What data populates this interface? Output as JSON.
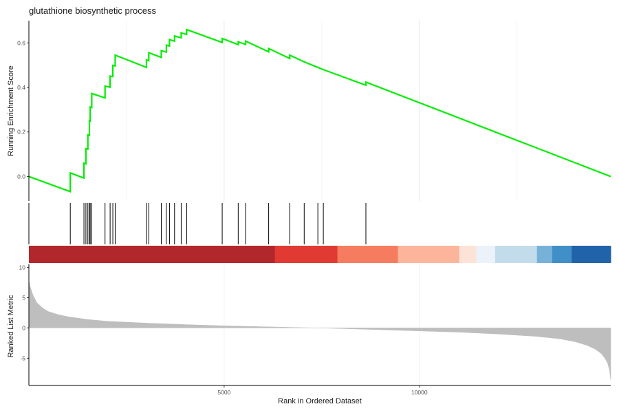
{
  "chart_data": {
    "type": "line",
    "title": "glutathione biosynthetic process",
    "xlabel": "Rank in Ordered Dataset",
    "xlim": [
      0,
      14900
    ],
    "x_ticks": [
      5000,
      10000
    ],
    "x_tick_labels": [
      "5000",
      "10000"
    ],
    "panels": {
      "enrichment": {
        "ylabel": "Running Enrichment Score",
        "ylim": [
          -0.11,
          0.7
        ],
        "y_ticks": [
          0.0,
          0.2,
          0.4,
          0.6
        ],
        "y_tick_labels": [
          "0.0",
          "0.2",
          "0.4",
          "0.6"
        ],
        "line_color": "#00ee00",
        "series": [
          {
            "x": [
              0,
              1060,
              1060,
              1410,
              1410,
              1460,
              1460,
              1510,
              1510,
              1550,
              1550,
              1570,
              1570,
              1610,
              1610,
              1950,
              1950,
              2080,
              2080,
              2150,
              2150,
              2210,
              2210,
              3010,
              3010,
              3070,
              3070,
              3390,
              3390,
              3520,
              3520,
              3600,
              3600,
              3730,
              3730,
              3900,
              3900,
              4040,
              4040,
              4950,
              4950,
              5360,
              5360,
              5550,
              5550,
              6140,
              6140,
              6680,
              6680,
              7050,
              7050,
              7400,
              7400,
              7540,
              7540,
              8630,
              8630,
              14900
            ],
            "y": [
              0.0,
              -0.068,
              0.016,
              -0.007,
              0.06,
              0.057,
              0.125,
              0.123,
              0.187,
              0.185,
              0.25,
              0.249,
              0.312,
              0.31,
              0.373,
              0.353,
              0.406,
              0.401,
              0.451,
              0.449,
              0.499,
              0.497,
              0.545,
              0.49,
              0.524,
              0.52,
              0.556,
              0.535,
              0.565,
              0.559,
              0.59,
              0.586,
              0.615,
              0.608,
              0.631,
              0.623,
              0.645,
              0.638,
              0.66,
              0.602,
              0.62,
              0.592,
              0.605,
              0.593,
              0.608,
              0.56,
              0.575,
              0.53,
              0.545,
              0.515,
              0.515,
              0.49,
              0.49,
              0.48,
              0.48,
              0.41,
              0.424,
              0.0
            ]
          }
        ]
      },
      "hits": {
        "positions": [
          1060,
          1410,
          1460,
          1510,
          1550,
          1570,
          1610,
          1950,
          2080,
          2150,
          2210,
          3010,
          3070,
          3390,
          3520,
          3600,
          3730,
          3900,
          4040,
          4950,
          5360,
          5550,
          6140,
          6680,
          7050,
          7400,
          7540,
          8630
        ]
      },
      "color_bar": {
        "segments": [
          {
            "from": 0,
            "to": 6300,
            "color": "#b2272c"
          },
          {
            "from": 6300,
            "to": 7900,
            "color": "#e03a33"
          },
          {
            "from": 7900,
            "to": 9450,
            "color": "#f67c5f"
          },
          {
            "from": 9450,
            "to": 11020,
            "color": "#fcb49a"
          },
          {
            "from": 11020,
            "to": 11460,
            "color": "#fde3d7"
          },
          {
            "from": 11460,
            "to": 11940,
            "color": "#ebf2fa"
          },
          {
            "from": 11940,
            "to": 13010,
            "color": "#c3dceb"
          },
          {
            "from": 13010,
            "to": 13400,
            "color": "#76b2d8"
          },
          {
            "from": 13400,
            "to": 13900,
            "color": "#4090c7"
          },
          {
            "from": 13900,
            "to": 14900,
            "color": "#2063a8"
          }
        ]
      },
      "ranked_metric": {
        "ylabel": "Ranked List Metric",
        "ylim": [
          -9.5,
          10.5
        ],
        "y_ticks": [
          -5,
          0,
          5,
          10
        ],
        "y_tick_labels": [
          "-5",
          "0",
          "5",
          "10"
        ],
        "fill_color": "#bebebe",
        "series": [
          {
            "x": [
              0,
              30,
              100,
              200,
              350,
              500,
              750,
              1000,
              1500,
              2000,
              3000,
              4000,
              5000,
              6000,
              7000,
              7400,
              8000,
              9000,
              10000,
              11000,
              12000,
              13000,
              13600,
              14000,
              14300,
              14500,
              14650,
              14750,
              14820,
              14870,
              14900
            ],
            "y": [
              7.8,
              6.9,
              5.5,
              4.2,
              3.3,
              2.7,
              2.2,
              1.85,
              1.4,
              1.1,
              0.8,
              0.55,
              0.35,
              0.2,
              0.05,
              0.0,
              -0.1,
              -0.3,
              -0.5,
              -0.7,
              -1.0,
              -1.4,
              -1.8,
              -2.3,
              -2.9,
              -3.5,
              -4.2,
              -5.0,
              -5.8,
              -7.0,
              -8.6
            ]
          }
        ]
      }
    }
  }
}
